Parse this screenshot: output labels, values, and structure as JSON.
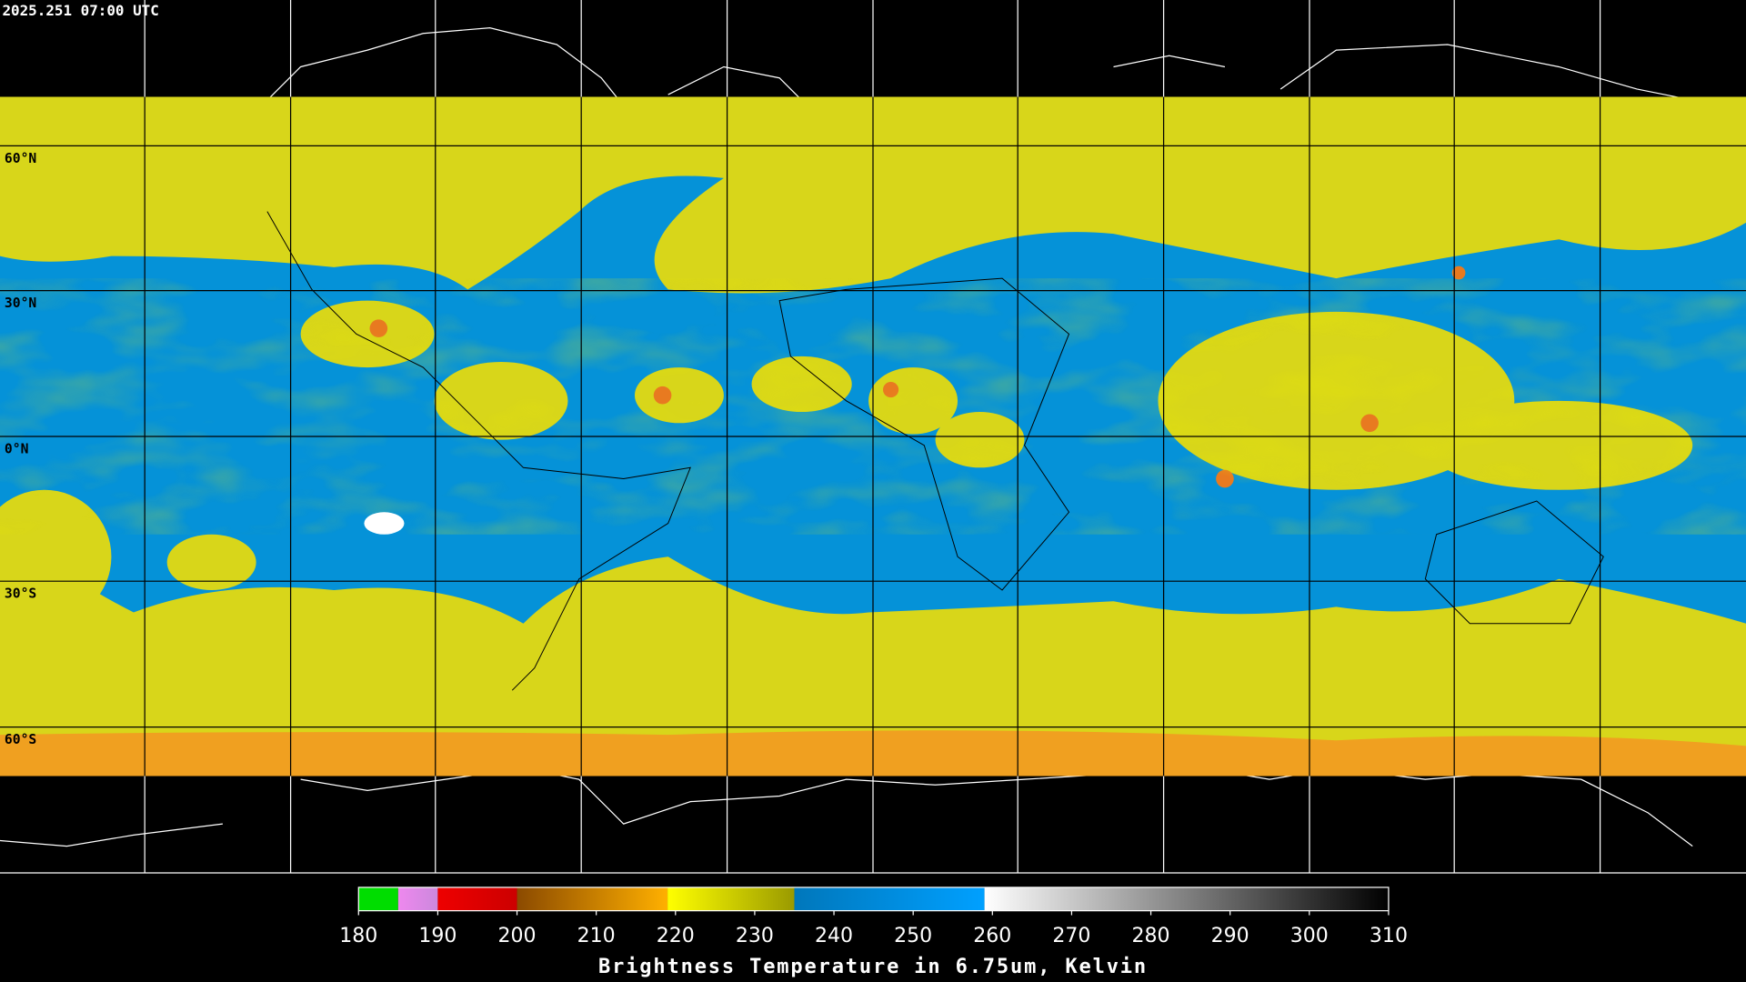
{
  "header": {
    "timestamp": "2025.251 07:00 UTC"
  },
  "map": {
    "lat_labels": [
      "60°N",
      "30°N",
      "0°N",
      "30°S",
      "60°S"
    ]
  },
  "colorbar": {
    "title": "Brightness Temperature in 6.75um, Kelvin",
    "range": [
      180,
      310
    ],
    "ticks": [
      180,
      190,
      200,
      210,
      220,
      230,
      240,
      250,
      260,
      270,
      280,
      290,
      300,
      310
    ],
    "segments": [
      {
        "from": 180,
        "to": 185,
        "colors": [
          "#00dd00",
          "#00dd00"
        ]
      },
      {
        "from": 185,
        "to": 190,
        "colors": [
          "#ee88ee",
          "#cc88dd"
        ]
      },
      {
        "from": 190,
        "to": 200,
        "colors": [
          "#ee0000",
          "#cc0000"
        ]
      },
      {
        "from": 200,
        "to": 219,
        "colors": [
          "#8b4a00",
          "#ffb000"
        ]
      },
      {
        "from": 219,
        "to": 235,
        "colors": [
          "#ffff00",
          "#9a9a00"
        ]
      },
      {
        "from": 235,
        "to": 259,
        "colors": [
          "#0077bb",
          "#00a0ff"
        ]
      },
      {
        "from": 259,
        "to": 310,
        "colors": [
          "#ffffff",
          "#000000"
        ]
      }
    ]
  }
}
